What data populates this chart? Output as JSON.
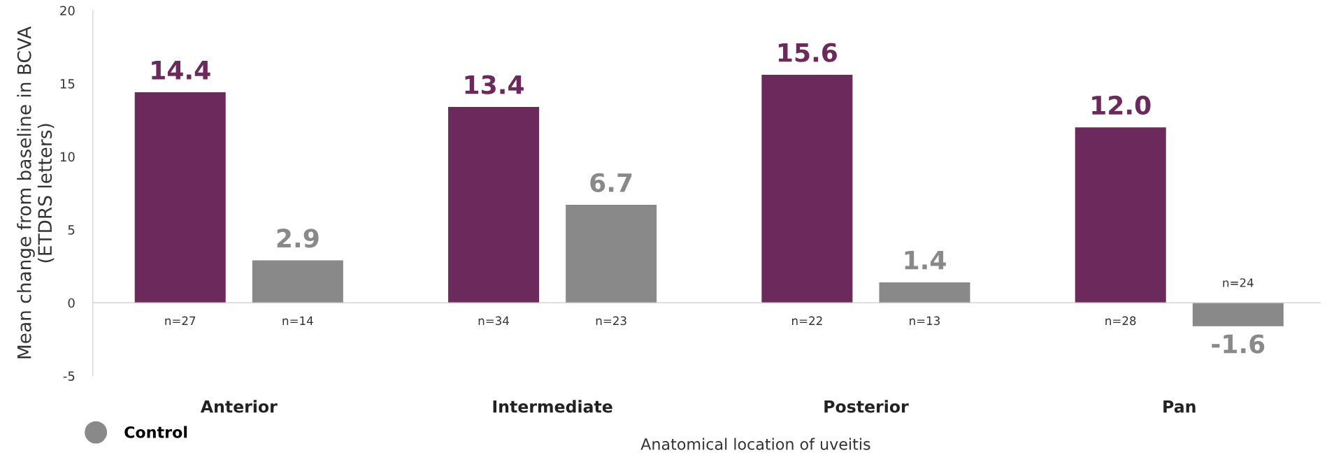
{
  "chart_data": {
    "type": "bar",
    "ylabel": "Mean change from baseline in BCVA\n(ETDRS letters)",
    "xlabel": "Anatomical location of uveitis",
    "categories": [
      "Anterior",
      "Intermediate",
      "Posterior",
      "Pan"
    ],
    "series": [
      {
        "color": "#6b2a5b",
        "values": [
          14.4,
          13.4,
          15.6,
          12.0
        ],
        "value_labels": [
          "14.4",
          "13.4",
          "15.6",
          "12.0"
        ]
      },
      {
        "name": "Control",
        "color": "#898989",
        "values": [
          2.9,
          6.7,
          1.4,
          -1.6
        ],
        "value_labels": [
          "2.9",
          "6.7",
          "1.4",
          "-1.6"
        ]
      }
    ],
    "ylim": [
      -5,
      20
    ],
    "yticks": [
      -5,
      0,
      5,
      10,
      15,
      20
    ],
    "legend": "bottom left",
    "annotations": [
      "n=27",
      "n=14",
      "n=34",
      "n=23",
      "n=22",
      "n=13",
      "n=28",
      "n=24"
    ]
  }
}
